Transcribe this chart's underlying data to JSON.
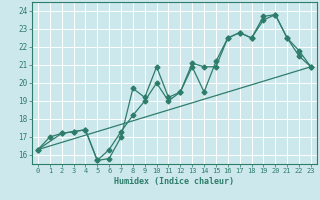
{
  "title": "",
  "xlabel": "Humidex (Indice chaleur)",
  "xlim": [
    -0.5,
    23.5
  ],
  "ylim": [
    15.5,
    24.5
  ],
  "xticks": [
    0,
    1,
    2,
    3,
    4,
    5,
    6,
    7,
    8,
    9,
    10,
    11,
    12,
    13,
    14,
    15,
    16,
    17,
    18,
    19,
    20,
    21,
    22,
    23
  ],
  "yticks": [
    16,
    17,
    18,
    19,
    20,
    21,
    22,
    23,
    24
  ],
  "bg_color": "#cde8ec",
  "grid_color": "#ffffff",
  "line_color": "#2e7d6b",
  "line1_x": [
    0,
    1,
    2,
    3,
    4,
    5,
    6,
    7,
    8,
    9,
    10,
    11,
    12,
    13,
    14,
    15,
    16,
    17,
    18,
    19,
    20,
    21,
    22,
    23
  ],
  "line1_y": [
    16.3,
    17.0,
    17.2,
    17.3,
    17.4,
    15.7,
    15.8,
    17.0,
    19.7,
    19.2,
    20.9,
    19.2,
    19.5,
    21.1,
    20.9,
    20.9,
    22.5,
    22.8,
    22.5,
    23.7,
    23.8,
    22.5,
    21.5,
    20.9
  ],
  "line2_x": [
    0,
    2,
    3,
    4,
    5,
    6,
    7,
    8,
    9,
    10,
    11,
    12,
    13,
    14,
    15,
    16,
    17,
    18,
    19,
    20,
    21,
    22,
    23
  ],
  "line2_y": [
    16.3,
    17.2,
    17.3,
    17.4,
    15.7,
    16.3,
    17.3,
    18.2,
    19.0,
    20.0,
    19.0,
    19.5,
    20.9,
    19.5,
    21.2,
    22.5,
    22.8,
    22.5,
    23.5,
    23.8,
    22.5,
    21.8,
    20.9
  ],
  "line3_x": [
    0,
    23
  ],
  "line3_y": [
    16.3,
    20.9
  ],
  "marker_size": 2.5,
  "linewidth": 0.9
}
